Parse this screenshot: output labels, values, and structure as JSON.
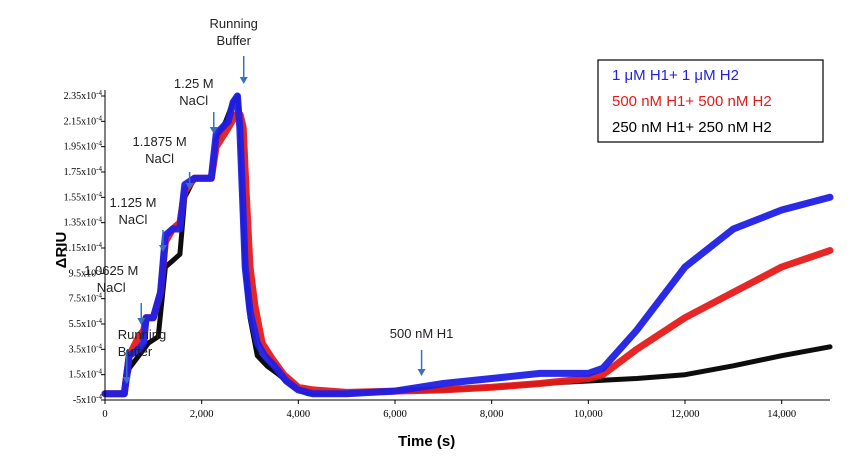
{
  "chart_data": {
    "type": "line",
    "title": "",
    "xlabel": "Time (s)",
    "ylabel": "ΔRIU",
    "xlim": [
      0,
      15000
    ],
    "ylim": [
      -5e-06,
      0.000235
    ],
    "x_ticks": [
      0,
      2000,
      4000,
      6000,
      8000,
      10000,
      12000,
      14000
    ],
    "x_tick_labels": [
      "0",
      "2,000",
      "4,000",
      "6,000",
      "8,000",
      "10,000",
      "12,000",
      "14,000"
    ],
    "y_ticks": [
      -5e-06,
      1.5e-05,
      3.5e-05,
      5.5e-05,
      7.5e-05,
      9.5e-05,
      0.000115,
      0.000135,
      0.000155,
      0.000175,
      0.000195,
      0.000215,
      0.000235
    ],
    "y_tick_mantissas": [
      "-5x10",
      "1.5x10",
      "3.5x10",
      "5.5x10",
      "7.5x10",
      "9.5x10",
      "1.15x10",
      "1.35x10",
      "1.55x10",
      "1.75x10",
      "1.95x10",
      "2.15x10",
      "2.35x10"
    ],
    "y_tick_exponent": "-4",
    "grid": false,
    "legend_position": "top-right",
    "series": [
      {
        "name": "1 μM H1+ 1 μM H2",
        "color": "#1f1fe6",
        "points": [
          [
            0,
            0
          ],
          [
            400,
            0
          ],
          [
            500,
            3e-05
          ],
          [
            700,
            3.5e-05
          ],
          [
            800,
            4e-05
          ],
          [
            850,
            6e-05
          ],
          [
            1000,
            6e-05
          ],
          [
            1150,
            8e-05
          ],
          [
            1250,
            0.000125
          ],
          [
            1400,
            0.00013
          ],
          [
            1550,
            0.00013
          ],
          [
            1650,
            0.000165
          ],
          [
            1850,
            0.00017
          ],
          [
            2200,
            0.00017
          ],
          [
            2300,
            0.000205
          ],
          [
            2550,
            0.000215
          ],
          [
            2650,
            0.00023
          ],
          [
            2740,
            0.000235
          ],
          [
            2790,
            0.00021
          ],
          [
            2850,
            0.00015
          ],
          [
            2900,
            0.0001
          ],
          [
            3000,
            6.5e-05
          ],
          [
            3150,
            4e-05
          ],
          [
            3300,
            3e-05
          ],
          [
            3500,
            2.2e-05
          ],
          [
            3750,
            1e-05
          ],
          [
            4000,
            3e-06
          ],
          [
            4300,
            0
          ],
          [
            4400,
            0
          ],
          [
            5000,
            0
          ],
          [
            6000,
            2e-06
          ],
          [
            7000,
            8e-06
          ],
          [
            8000,
            1.2e-05
          ],
          [
            9000,
            1.6e-05
          ],
          [
            10000,
            1.6e-05
          ],
          [
            10300,
            2e-05
          ],
          [
            11000,
            5e-05
          ],
          [
            12000,
            0.0001
          ],
          [
            13000,
            0.00013
          ],
          [
            14000,
            0.000145
          ],
          [
            15000,
            0.000155
          ]
        ]
      },
      {
        "name": "500 nM H1+ 500 nM H2",
        "color": "#e61a1a",
        "points": [
          [
            0,
            0
          ],
          [
            400,
            0
          ],
          [
            500,
            3e-05
          ],
          [
            700,
            4.5e-05
          ],
          [
            800,
            5e-05
          ],
          [
            850,
            6e-05
          ],
          [
            1000,
            6e-05
          ],
          [
            1150,
            8e-05
          ],
          [
            1250,
            0.00012
          ],
          [
            1400,
            0.00013
          ],
          [
            1550,
            0.000135
          ],
          [
            1650,
            0.00016
          ],
          [
            1850,
            0.00017
          ],
          [
            2200,
            0.00017
          ],
          [
            2300,
            0.000195
          ],
          [
            2550,
            0.00021
          ],
          [
            2700,
            0.00022
          ],
          [
            2800,
            0.00022
          ],
          [
            2860,
            0.00021
          ],
          [
            2920,
            0.00016
          ],
          [
            3000,
            0.0001
          ],
          [
            3100,
            7e-05
          ],
          [
            3250,
            4e-05
          ],
          [
            3450,
            2.8e-05
          ],
          [
            3700,
            1.5e-05
          ],
          [
            4000,
            5e-06
          ],
          [
            4300,
            3e-06
          ],
          [
            5000,
            1e-06
          ],
          [
            6000,
            2e-06
          ],
          [
            7000,
            3e-06
          ],
          [
            8000,
            5e-06
          ],
          [
            9000,
            8e-06
          ],
          [
            10000,
            1.2e-05
          ],
          [
            10300,
            1.5e-05
          ],
          [
            11000,
            3.5e-05
          ],
          [
            12000,
            6e-05
          ],
          [
            13000,
            8e-05
          ],
          [
            14000,
            0.0001
          ],
          [
            15000,
            0.000113
          ]
        ]
      },
      {
        "name": "250 nM H1+ 250 nM H2",
        "color": "#000000",
        "points": [
          [
            0,
            0
          ],
          [
            400,
            0
          ],
          [
            500,
            2e-05
          ],
          [
            700,
            3e-05
          ],
          [
            800,
            3.5e-05
          ],
          [
            900,
            4e-05
          ],
          [
            1100,
            4.5e-05
          ],
          [
            1250,
            0.0001
          ],
          [
            1400,
            0.000105
          ],
          [
            1550,
            0.00011
          ],
          [
            1650,
            0.000155
          ],
          [
            1850,
            0.00017
          ],
          [
            2200,
            0.00017
          ],
          [
            2300,
            0.0002
          ],
          [
            2500,
            0.000215
          ],
          [
            2650,
            0.00023
          ],
          [
            2750,
            0.000235
          ],
          [
            2800,
            0.00021
          ],
          [
            2850,
            0.00015
          ],
          [
            2900,
            0.0001
          ],
          [
            3000,
            6e-05
          ],
          [
            3150,
            3e-05
          ],
          [
            3350,
            2.2e-05
          ],
          [
            3600,
            1.5e-05
          ],
          [
            3900,
            5e-06
          ],
          [
            4200,
            0
          ],
          [
            4300,
            0
          ],
          [
            5000,
            0
          ],
          [
            6000,
            2e-06
          ],
          [
            7000,
            3e-06
          ],
          [
            8000,
            5e-06
          ],
          [
            9000,
            8e-06
          ],
          [
            10000,
            1e-05
          ],
          [
            11000,
            1.2e-05
          ],
          [
            12000,
            1.5e-05
          ],
          [
            13000,
            2.2e-05
          ],
          [
            14000,
            3e-05
          ],
          [
            15000,
            3.7e-05
          ]
        ]
      }
    ],
    "annotations": [
      {
        "lines": [
          "Running",
          "Buffer"
        ],
        "x": 2870
      },
      {
        "lines": [
          "1.25 M",
          "NaCl"
        ],
        "x": 2250
      },
      {
        "lines": [
          "1.1875 M",
          "NaCl"
        ],
        "x": 1750
      },
      {
        "lines": [
          "1.125 M",
          "NaCl"
        ],
        "x": 1200
      },
      {
        "lines": [
          "1.0625 M",
          "NaCl"
        ],
        "x": 750
      },
      {
        "lines": [
          "Running",
          "Buffer"
        ],
        "x": 450
      },
      {
        "lines": [
          "500 nM H1"
        ],
        "x": 6550
      }
    ]
  }
}
